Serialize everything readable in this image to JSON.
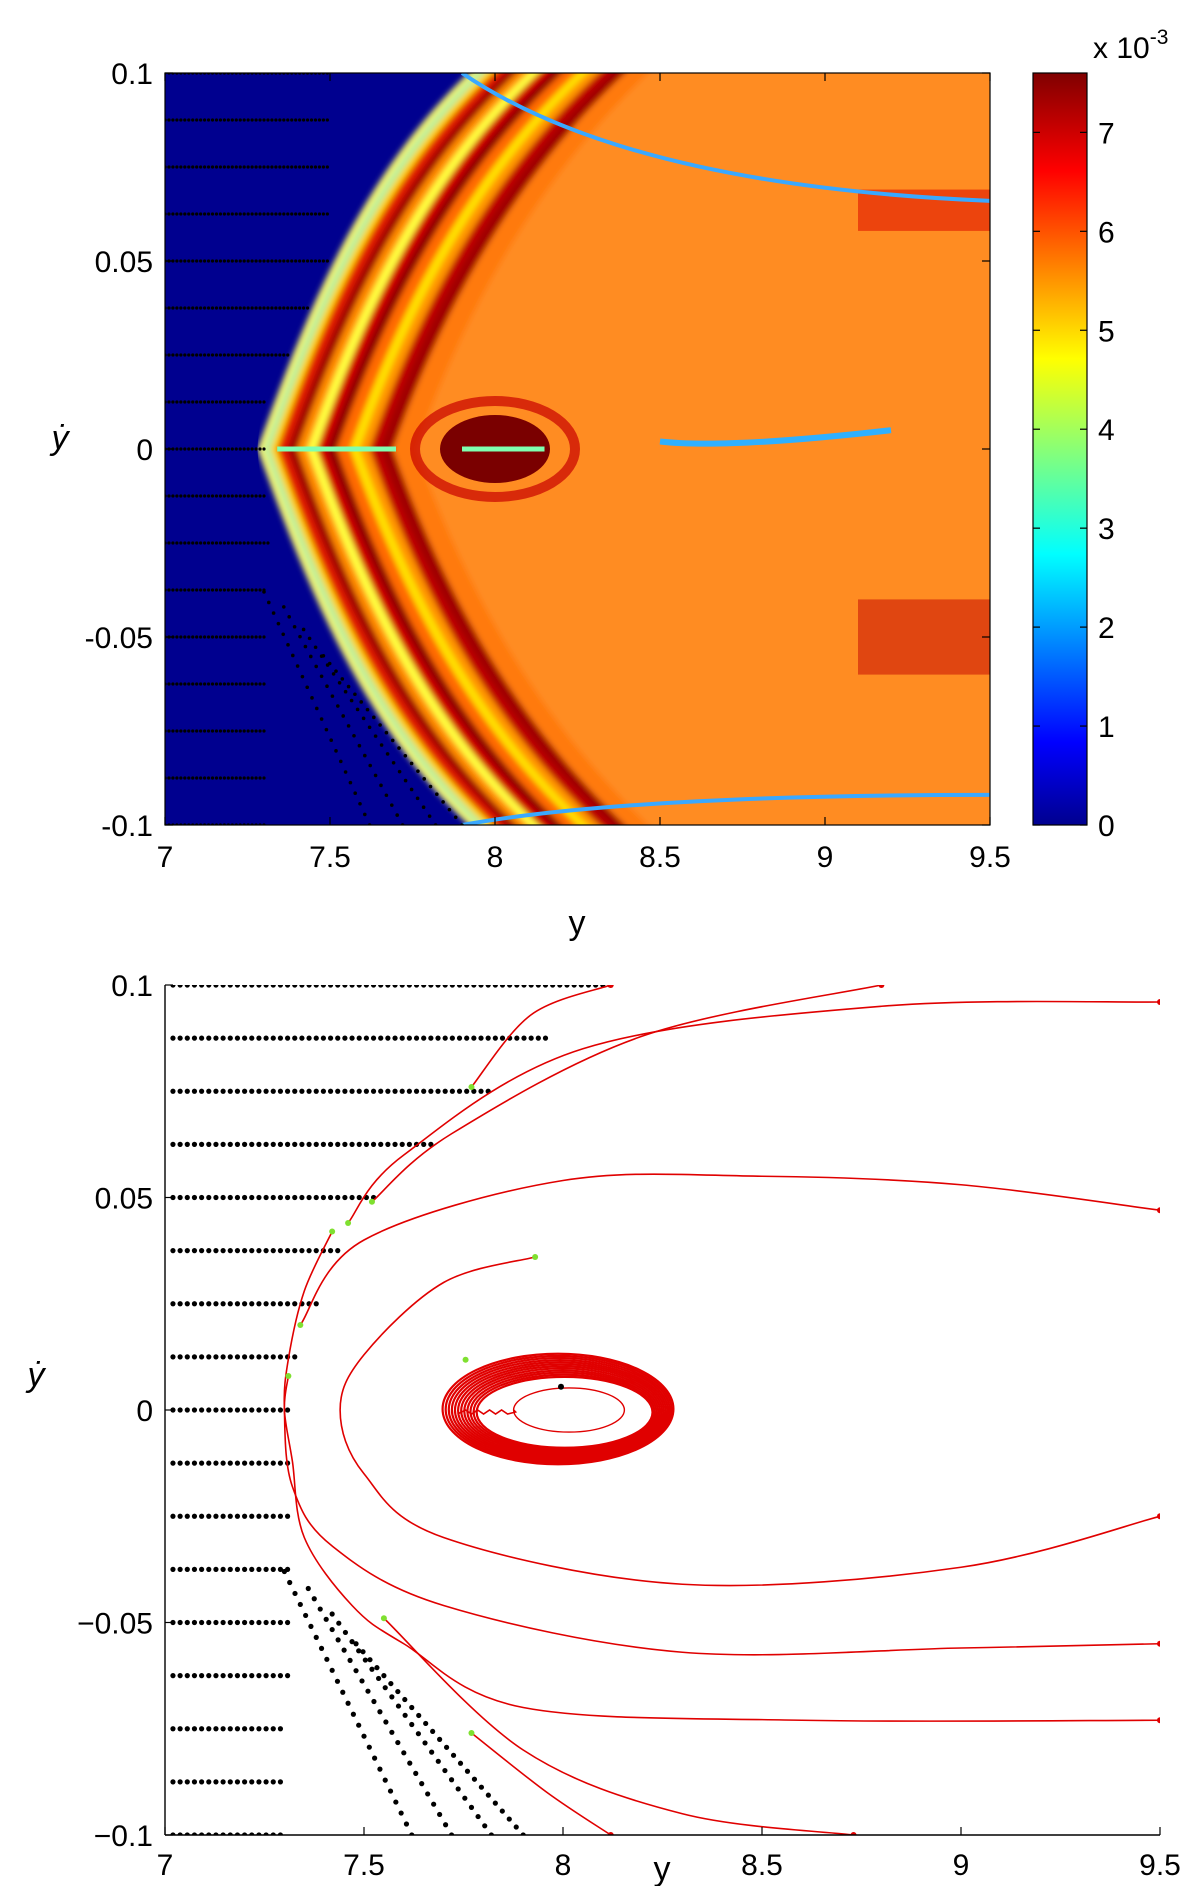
{
  "chart_data": [
    {
      "type": "heatmap",
      "xlabel": "y",
      "ylabel": "ẏ",
      "xlim": [
        7,
        9.5
      ],
      "ylim": [
        -0.1,
        0.1
      ],
      "xticks": [
        "7",
        "7.5",
        "8",
        "8.5",
        "9",
        "9.5"
      ],
      "yticks": [
        "-0.1",
        "-0.05",
        "0",
        "0.05",
        "0.1"
      ],
      "colorbar": {
        "range": [
          0,
          7.6
        ],
        "ticks": [
          "0",
          "1",
          "2",
          "3",
          "4",
          "5",
          "6",
          "7"
        ],
        "multiplier_label": "x 10",
        "multiplier_exponent": "-3",
        "colormap": "jet"
      },
      "features": {
        "zero_region_boundary": "parabola from (7.28, 0) to (7.86, ±0.1)",
        "high_band_vertex_y": [
          7.34,
          7.46,
          7.62
        ],
        "hot_spot_center": [
          8.0,
          0.0
        ],
        "low_line_ydot": 0.0,
        "boundary_dots_rows": [
          0.1,
          0.0875,
          0.075,
          0.0625,
          0.05,
          0.0375,
          0.025,
          0.0125,
          0.0,
          -0.0125,
          -0.025,
          -0.0375,
          -0.05,
          -0.0625,
          -0.075,
          -0.0875,
          -0.1
        ]
      }
    },
    {
      "type": "scatter",
      "xlabel": "y",
      "ylabel": "ẏ",
      "xlim": [
        7,
        9.5
      ],
      "ylim": [
        -0.1,
        0.1
      ],
      "xticks": [
        "7",
        "7.5",
        "8",
        "8.5",
        "9",
        "9.5"
      ],
      "yticks": [
        "−0.1",
        "−0.05",
        "0",
        "0.05",
        "0.1"
      ],
      "dot_rows": [
        {
          "ydot": 0.1,
          "x_end": 8.12
        },
        {
          "ydot": 0.0875,
          "x_end": 7.96
        },
        {
          "ydot": 0.075,
          "x_end": 7.82
        },
        {
          "ydot": 0.0625,
          "x_end": 7.68
        },
        {
          "ydot": 0.05,
          "x_end": 7.54
        },
        {
          "ydot": 0.0375,
          "x_end": 7.44
        },
        {
          "ydot": 0.025,
          "x_end": 7.38
        },
        {
          "ydot": 0.0125,
          "x_end": 7.33
        },
        {
          "ydot": 0.0,
          "x_end": 7.31
        },
        {
          "ydot": -0.0125,
          "x_end": 7.31
        },
        {
          "ydot": -0.025,
          "x_end": 7.32
        },
        {
          "ydot": -0.0375,
          "x_end": 7.31
        },
        {
          "ydot": -0.05,
          "x_end": 7.31
        },
        {
          "ydot": -0.0625,
          "x_end": 7.31
        },
        {
          "ydot": -0.075,
          "x_end": 7.3
        },
        {
          "ydot": -0.0875,
          "x_end": 7.3
        },
        {
          "ydot": -0.1,
          "x_end": 7.3
        }
      ],
      "diagonal_dot_lines": [
        {
          "start": [
            7.3,
            -0.038
          ],
          "end": [
            7.62,
            -0.1
          ]
        },
        {
          "start": [
            7.36,
            -0.042
          ],
          "end": [
            7.72,
            -0.1
          ]
        },
        {
          "start": [
            7.42,
            -0.048
          ],
          "end": [
            7.82,
            -0.1
          ]
        },
        {
          "start": [
            7.48,
            -0.055
          ],
          "end": [
            7.9,
            -0.1
          ]
        }
      ],
      "trajectories": [
        {
          "points": [
            [
              7.77,
              0.076
            ],
            [
              7.92,
              0.093
            ],
            [
              8.12,
              0.1
            ]
          ]
        },
        {
          "points": [
            [
              7.52,
              0.049
            ],
            [
              7.72,
              0.065
            ],
            [
              8.2,
              0.088
            ],
            [
              8.8,
              0.1
            ]
          ]
        },
        {
          "points": [
            [
              7.46,
              0.044
            ],
            [
              7.6,
              0.06
            ],
            [
              8.05,
              0.085
            ],
            [
              8.8,
              0.095
            ],
            [
              9.5,
              0.096
            ]
          ]
        },
        {
          "points": [
            [
              7.34,
              0.02
            ],
            [
              7.5,
              0.04
            ],
            [
              8.0,
              0.054
            ],
            [
              8.5,
              0.055
            ],
            [
              9.0,
              0.053
            ],
            [
              9.5,
              0.047
            ]
          ]
        },
        {
          "points": [
            [
              7.42,
              0.042
            ],
            [
              7.35,
              0.028
            ],
            [
              7.31,
              0.012
            ],
            [
              7.3,
              0.0
            ],
            [
              7.32,
              -0.018
            ],
            [
              7.42,
              -0.032
            ],
            [
              7.7,
              -0.046
            ],
            [
              8.3,
              -0.057
            ],
            [
              9.0,
              -0.056
            ],
            [
              9.5,
              -0.055
            ]
          ]
        },
        {
          "points": [
            [
              7.31,
              0.008
            ],
            [
              7.3,
              0.0
            ],
            [
              7.32,
              -0.012
            ],
            [
              7.35,
              -0.03
            ],
            [
              7.47,
              -0.046
            ],
            [
              7.6,
              -0.055
            ],
            [
              7.9,
              -0.07
            ],
            [
              8.6,
              -0.073
            ],
            [
              9.5,
              -0.073
            ]
          ]
        },
        {
          "points": [
            [
              7.93,
              0.036
            ],
            [
              7.7,
              0.03
            ],
            [
              7.5,
              0.013
            ],
            [
              7.44,
              0.0
            ],
            [
              7.5,
              -0.015
            ],
            [
              7.7,
              -0.03
            ],
            [
              8.3,
              -0.041
            ],
            [
              9.0,
              -0.037
            ],
            [
              9.5,
              -0.025
            ]
          ]
        },
        {
          "points": [
            [
              7.77,
              -0.076
            ],
            [
              7.96,
              -0.09
            ],
            [
              8.12,
              -0.1
            ]
          ]
        },
        {
          "points": [
            [
              7.55,
              -0.049
            ],
            [
              7.9,
              -0.08
            ],
            [
              8.3,
              -0.095
            ],
            [
              8.73,
              -0.1
            ]
          ]
        }
      ],
      "limit_cycle": {
        "center": [
          8.0,
          0.0
        ],
        "ry_outer": 0.013,
        "rx_outer": 0.29
      }
    }
  ]
}
